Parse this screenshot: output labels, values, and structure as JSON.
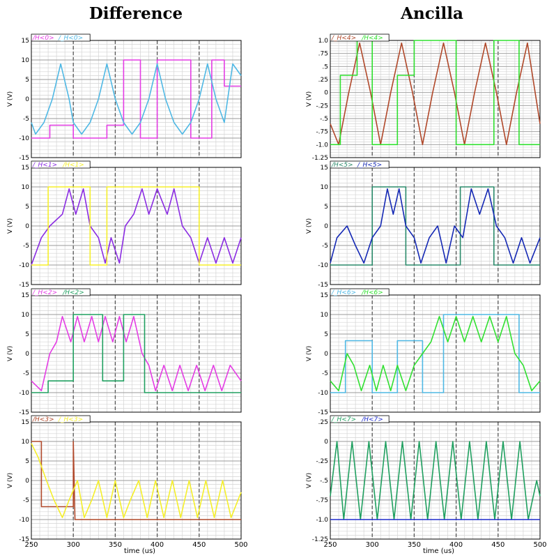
{
  "titles": {
    "left": "Difference",
    "right": "Ancilla"
  },
  "colors": {
    "magenta": "#e43ce4",
    "cyan": "#4fb8e4",
    "purple": "#8a2be2",
    "yellow": "#f5ef2a",
    "green": "#20a060",
    "brown": "#b0482a",
    "lime": "#30e030",
    "teal": "#2a8a6a",
    "blue": "#1428b4",
    "darkgreen": "#1f9f5f",
    "navy": "#1e2ccc"
  },
  "chart_data": [
    {
      "type": "line",
      "column": "left",
      "row": 0,
      "ylabel": "V (V)",
      "xlim": [
        250,
        500
      ],
      "ylim": [
        -1.5,
        1.5
      ],
      "yticks": [
        -1.5,
        -1.0,
        -0.5,
        0,
        0.5,
        1.0,
        1.5
      ],
      "ytick_labels": [
        "-15",
        "-10",
        "-5",
        "0",
        "5",
        "10",
        "15"
      ],
      "series": [
        {
          "name": "/H<0>",
          "color": "magenta",
          "x": [
            250,
            272,
            272,
            300,
            300,
            340,
            340,
            360,
            360,
            380,
            380,
            400,
            400,
            440,
            440,
            465,
            465,
            480,
            480,
            500
          ],
          "y": [
            -1.0,
            -1.0,
            -0.67,
            -0.67,
            -1.0,
            -1.0,
            -0.67,
            -0.67,
            1.0,
            1.0,
            -1.0,
            -1.0,
            1.0,
            1.0,
            -1.0,
            -1.0,
            1.0,
            1.0,
            0.33,
            0.33
          ]
        },
        {
          "name": "/_H<0>",
          "color": "cyan",
          "x": [
            250,
            255,
            265,
            275,
            285,
            295,
            300,
            310,
            320,
            330,
            340,
            350,
            360,
            370,
            380,
            390,
            400,
            410,
            420,
            430,
            440,
            450,
            460,
            470,
            480,
            490,
            500
          ],
          "y": [
            -0.6,
            -0.9,
            -0.6,
            0,
            0.9,
            0,
            -0.6,
            -0.9,
            -0.6,
            0,
            0.9,
            0,
            -0.6,
            -0.9,
            -0.6,
            0,
            0.9,
            0,
            -0.6,
            -0.9,
            -0.6,
            0,
            0.9,
            0,
            -0.6,
            0.9,
            0.6
          ]
        }
      ]
    },
    {
      "type": "line",
      "column": "left",
      "row": 1,
      "ylabel": "V (V)",
      "xlim": [
        250,
        500
      ],
      "ylim": [
        -1.5,
        1.5
      ],
      "yticks": [
        -1.5,
        -1.0,
        -0.5,
        0,
        0.5,
        1.0,
        1.5
      ],
      "ytick_labels": [
        "-15",
        "-10",
        "-5",
        "0",
        "5",
        "10",
        "15"
      ],
      "series": [
        {
          "name": "/_H<1>",
          "color": "purple",
          "x": [
            250,
            262,
            272,
            287,
            295,
            303,
            312,
            320,
            330,
            338,
            345,
            355,
            362,
            372,
            382,
            390,
            400,
            412,
            420,
            430,
            440,
            450,
            460,
            470,
            480,
            490,
            500
          ],
          "y": [
            -1.0,
            -0.3,
            0,
            0.3,
            0.95,
            0.3,
            0.95,
            0,
            -0.3,
            -0.95,
            -0.3,
            -0.95,
            0,
            0.3,
            0.95,
            0.3,
            0.95,
            0.3,
            0.95,
            0,
            -0.3,
            -0.95,
            -0.3,
            -0.95,
            -0.3,
            -0.95,
            -0.3
          ]
        },
        {
          "name": "/H<1>",
          "color": "yellow",
          "x": [
            250,
            270,
            270,
            320,
            320,
            340,
            340,
            400,
            400,
            450,
            450,
            500
          ],
          "y": [
            -1.0,
            -1.0,
            1.0,
            1.0,
            -1.0,
            -1.0,
            1.0,
            1.0,
            1.0,
            1.0,
            -1.0,
            -1.0
          ]
        }
      ]
    },
    {
      "type": "line",
      "column": "left",
      "row": 2,
      "ylabel": "V (V)",
      "xlim": [
        250,
        500
      ],
      "ylim": [
        -1.5,
        1.5
      ],
      "yticks": [
        -1.5,
        -1.0,
        -0.5,
        0,
        0.5,
        1.0,
        1.5
      ],
      "ytick_labels": [
        "-15",
        "-10",
        "-5",
        "0",
        "5",
        "10",
        "15"
      ],
      "series": [
        {
          "name": "/_H<2>",
          "color": "magenta",
          "x": [
            250,
            262,
            272,
            280,
            287,
            297,
            305,
            313,
            322,
            330,
            338,
            347,
            355,
            363,
            372,
            382,
            390,
            398,
            408,
            418,
            427,
            437,
            447,
            457,
            467,
            477,
            487,
            500
          ],
          "y": [
            -0.7,
            -0.95,
            0,
            0.3,
            0.95,
            0.3,
            0.95,
            0.3,
            0.95,
            0.3,
            0.95,
            0.3,
            0.95,
            0.3,
            0.95,
            0,
            -0.3,
            -0.95,
            -0.3,
            -0.95,
            -0.3,
            -0.95,
            -0.3,
            -0.95,
            -0.3,
            -0.95,
            -0.3,
            -0.7
          ]
        },
        {
          "name": "/H<2>",
          "color": "green",
          "x": [
            250,
            270,
            270,
            300,
            300,
            335,
            335,
            360,
            360,
            385,
            385,
            500
          ],
          "y": [
            -1.0,
            -1.0,
            -0.7,
            -0.7,
            1.0,
            1.0,
            -0.7,
            -0.7,
            1.0,
            1.0,
            -1.0,
            -1.0
          ]
        }
      ]
    },
    {
      "type": "line",
      "column": "left",
      "row": 3,
      "xlabel": "time (us)",
      "ylabel": "V (V)",
      "xlim": [
        250,
        500
      ],
      "ylim": [
        -1.5,
        1.5
      ],
      "xticks": [
        250,
        300,
        350,
        400,
        450,
        500
      ],
      "yticks": [
        -1.5,
        -1.0,
        -0.5,
        0,
        0.5,
        1.0,
        1.5
      ],
      "ytick_labels": [
        "-15",
        "-10",
        "-5",
        "0",
        "5",
        "10",
        "15"
      ],
      "series": [
        {
          "name": "/H<3>",
          "color": "brown",
          "x": [
            250,
            262,
            262,
            300,
            300,
            302,
            302,
            500
          ],
          "y": [
            1.0,
            1.0,
            -0.67,
            -0.67,
            1.0,
            -1.0,
            -1.0,
            -1.0
          ]
        },
        {
          "name": "/_H<3>",
          "color": "yellow",
          "x": [
            250,
            258,
            268,
            277,
            287,
            295,
            305,
            313,
            322,
            330,
            340,
            350,
            360,
            368,
            378,
            388,
            398,
            408,
            418,
            428,
            438,
            448,
            458,
            468,
            478,
            488,
            500
          ],
          "y": [
            0.95,
            0.6,
            0,
            -0.5,
            -0.95,
            -0.5,
            0,
            -0.95,
            -0.5,
            0,
            -0.95,
            0,
            -0.95,
            -0.5,
            0,
            -0.95,
            0,
            -0.95,
            0,
            -0.95,
            0,
            -0.95,
            0,
            -0.95,
            0,
            -0.95,
            -0.3
          ]
        }
      ]
    },
    {
      "type": "line",
      "column": "right",
      "row": 0,
      "ylabel": "V (V)",
      "xlim": [
        250,
        500
      ],
      "ylim": [
        -1.25,
        1.0
      ],
      "yticks": [
        -1.25,
        -1.0,
        -0.75,
        -0.5,
        -0.25,
        0,
        0.25,
        0.5,
        0.75,
        1.0
      ],
      "ytick_labels": [
        "-1.25",
        "-1.0",
        "-.75",
        "-.5",
        "-.25",
        "0",
        ".25",
        ".5",
        ".75",
        "1.0"
      ],
      "series": [
        {
          "name": "/_H<4>",
          "color": "brown",
          "x": [
            250,
            260,
            272,
            285,
            298,
            310,
            322,
            335,
            348,
            360,
            372,
            385,
            398,
            410,
            422,
            435,
            448,
            460,
            472,
            485,
            500
          ],
          "y": [
            -0.6,
            -1.0,
            0,
            0.95,
            0,
            -1.0,
            0,
            0.95,
            0,
            -1.0,
            0,
            0.95,
            0,
            -1.0,
            0,
            0.95,
            0,
            -1.0,
            0,
            0.95,
            -0.6
          ]
        },
        {
          "name": "/H<4>",
          "color": "lime",
          "x": [
            250,
            262,
            262,
            282,
            282,
            300,
            300,
            330,
            330,
            350,
            350,
            375,
            375,
            400,
            400,
            445,
            445,
            475,
            475,
            500
          ],
          "y": [
            -1.0,
            -1.0,
            0.33,
            0.33,
            1.0,
            1.0,
            -1.0,
            -1.0,
            0.33,
            0.33,
            1.0,
            1.0,
            1.0,
            1.0,
            -1.0,
            -1.0,
            1.0,
            1.0,
            -1.0,
            -1.0
          ]
        }
      ]
    },
    {
      "type": "line",
      "column": "right",
      "row": 1,
      "ylabel": "V (V)",
      "xlim": [
        250,
        500
      ],
      "ylim": [
        -1.5,
        1.5
      ],
      "yticks": [
        -1.5,
        -1.0,
        -0.5,
        0,
        0.5,
        1.0,
        1.5
      ],
      "ytick_labels": [
        "-15",
        "-10",
        "-5",
        "0",
        "5",
        "10",
        "15"
      ],
      "series": [
        {
          "name": "/H<5>",
          "color": "teal",
          "x": [
            250,
            268,
            268,
            300,
            300,
            340,
            340,
            380,
            380,
            405,
            405,
            445,
            445,
            480,
            480,
            500
          ],
          "y": [
            -1.0,
            -1.0,
            -1.0,
            -1.0,
            1.0,
            1.0,
            -1.0,
            -1.0,
            -1.0,
            -1.0,
            1.0,
            1.0,
            -1.0,
            -1.0,
            -1.0,
            -1.0
          ]
        },
        {
          "name": "/_H<5>",
          "color": "blue",
          "x": [
            250,
            258,
            270,
            280,
            290,
            300,
            310,
            318,
            325,
            332,
            340,
            350,
            358,
            368,
            378,
            388,
            398,
            408,
            418,
            428,
            438,
            448,
            458,
            468,
            478,
            488,
            500
          ],
          "y": [
            -0.95,
            -0.3,
            0,
            -0.5,
            -0.95,
            -0.3,
            0,
            0.95,
            0.3,
            0.95,
            0,
            -0.3,
            -0.95,
            -0.3,
            0,
            -0.95,
            0,
            -0.3,
            0.95,
            0.3,
            0.95,
            0,
            -0.3,
            -0.95,
            -0.3,
            -0.95,
            -0.3
          ]
        }
      ]
    },
    {
      "type": "line",
      "column": "right",
      "row": 2,
      "ylabel": "V (V)",
      "xlim": [
        250,
        500
      ],
      "ylim": [
        -1.5,
        1.5
      ],
      "yticks": [
        -1.5,
        -1.0,
        -0.5,
        0,
        0.5,
        1.0,
        1.5
      ],
      "ytick_labels": [
        "-15",
        "-10",
        "-5",
        "0",
        "5",
        "10",
        "15"
      ],
      "series": [
        {
          "name": "/_H<6>",
          "color": "cyan",
          "x": [
            250,
            268,
            268,
            300,
            300,
            330,
            330,
            360,
            360,
            385,
            385,
            475,
            475,
            500
          ],
          "y": [
            -1.0,
            -1.0,
            0.33,
            0.33,
            -1.0,
            -1.0,
            0.33,
            0.33,
            -1.0,
            -1.0,
            1.0,
            1.0,
            -1.0,
            -1.0
          ]
        },
        {
          "name": "/H<6>",
          "color": "lime",
          "x": [
            250,
            260,
            270,
            278,
            287,
            297,
            305,
            313,
            322,
            330,
            340,
            350,
            360,
            370,
            380,
            390,
            400,
            410,
            420,
            430,
            440,
            450,
            460,
            470,
            480,
            490,
            500
          ],
          "y": [
            -0.7,
            -0.95,
            0,
            -0.3,
            -0.95,
            -0.3,
            -0.95,
            -0.3,
            -0.95,
            -0.3,
            -0.95,
            -0.3,
            0,
            0.3,
            0.95,
            0.3,
            0.95,
            0.3,
            0.95,
            0.3,
            0.95,
            0.3,
            0.95,
            0,
            -0.3,
            -0.95,
            -0.7
          ]
        }
      ]
    },
    {
      "type": "line",
      "column": "right",
      "row": 3,
      "xlabel": "time (us)",
      "ylabel": "V (V)",
      "xlim": [
        250,
        500
      ],
      "ylim": [
        -1.25,
        0.25
      ],
      "xticks": [
        250,
        300,
        350,
        400,
        450,
        500
      ],
      "yticks": [
        -1.25,
        -1.0,
        -0.75,
        -0.5,
        -0.25,
        0,
        0.25
      ],
      "ytick_labels": [
        "-1.25",
        "-1.0",
        "-.75",
        "-.5",
        "-.25",
        "0",
        ".25"
      ],
      "series": [
        {
          "name": "/_H<7>",
          "color": "darkgreen",
          "x": [
            250,
            258,
            266,
            276,
            286,
            296,
            306,
            316,
            326,
            336,
            346,
            356,
            366,
            376,
            386,
            396,
            406,
            416,
            426,
            436,
            446,
            456,
            466,
            476,
            486,
            496,
            500
          ],
          "y": [
            -0.7,
            0,
            -1.0,
            0,
            -1.0,
            0,
            -1.0,
            0,
            -1.0,
            0,
            -1.0,
            0,
            -1.0,
            0,
            -1.0,
            0,
            -1.0,
            0,
            -1.0,
            0,
            -1.0,
            0,
            -1.0,
            0,
            -1.0,
            -0.5,
            -0.7
          ]
        },
        {
          "name": "/H<7>",
          "color": "navy",
          "x": [
            250,
            500
          ],
          "y": [
            -1.0,
            -1.0
          ]
        }
      ]
    }
  ]
}
